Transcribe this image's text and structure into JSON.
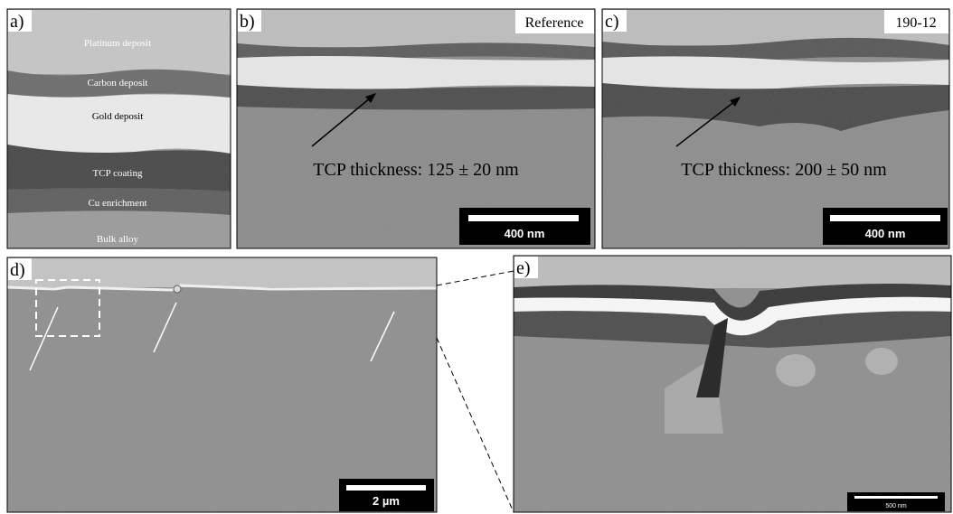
{
  "panels": [
    {
      "label": "a)",
      "layers": [
        "Platinum deposit",
        "Carbon deposit",
        "Gold deposit",
        "TCP coating",
        "Cu enrichment",
        "Bulk alloy"
      ]
    },
    {
      "label": "b)",
      "tag": "Reference",
      "annotation": "TCP thickness: 125 ± 20 nm",
      "scale_bar": "400 nm"
    },
    {
      "label": "c)",
      "tag": "190-12",
      "annotation": "TCP thickness: 200 ± 50 nm",
      "scale_bar": "400 nm"
    },
    {
      "label": "d)",
      "scale_bar": "2 µm"
    },
    {
      "label": "e)",
      "scale_bar": "500 nm"
    }
  ]
}
